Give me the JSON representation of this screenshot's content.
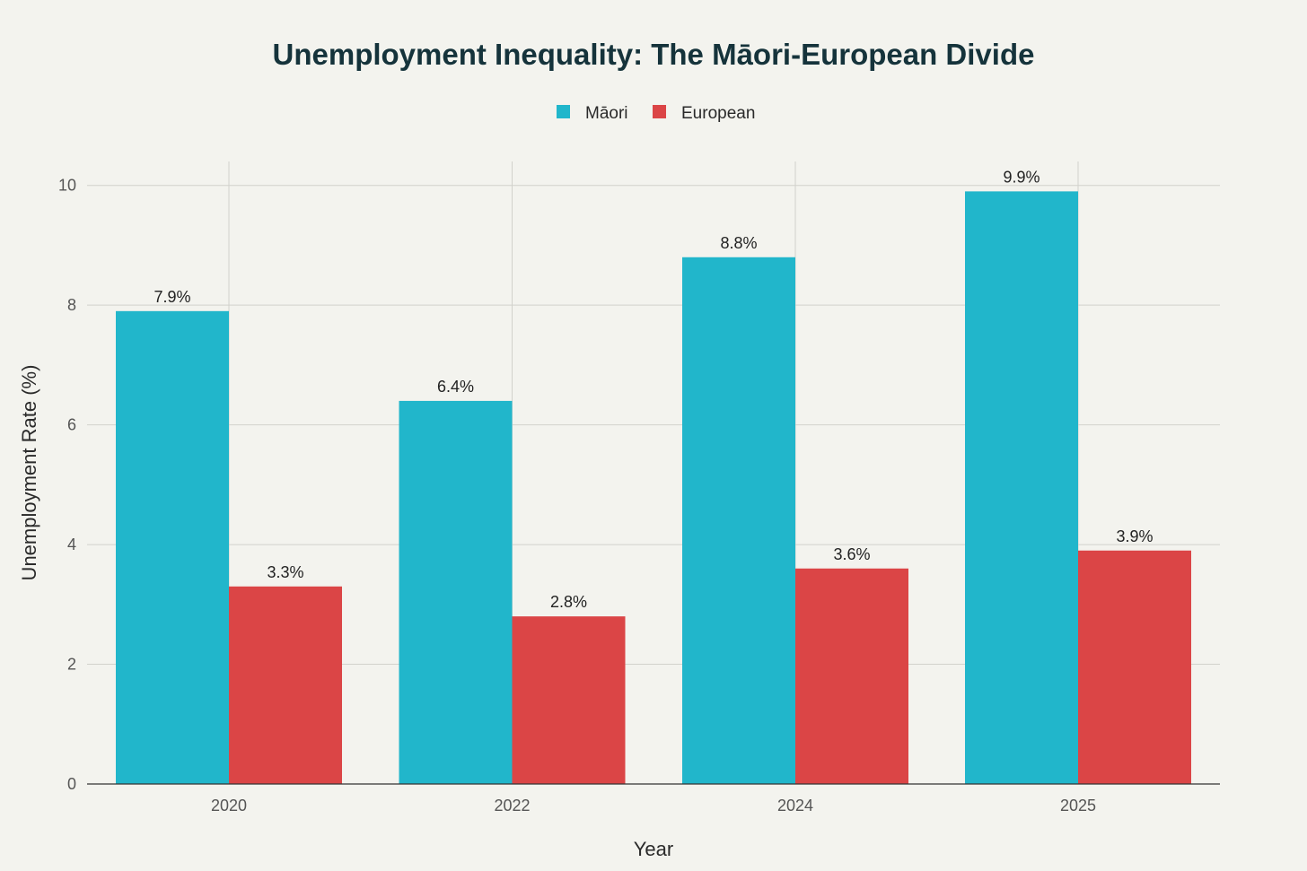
{
  "chart_data": {
    "type": "bar",
    "title": "Unemployment Inequality: The Māori-European Divide",
    "xlabel": "Year",
    "ylabel": "Unemployment Rate (%)",
    "categories": [
      "2020",
      "2022",
      "2024",
      "2025"
    ],
    "series": [
      {
        "name": "Māori",
        "color": "#21b6cb",
        "values": [
          7.9,
          6.4,
          8.8,
          9.9
        ],
        "labels": [
          "7.9%",
          "6.4%",
          "8.8%",
          "9.9%"
        ]
      },
      {
        "name": "European",
        "color": "#db4546",
        "values": [
          3.3,
          2.8,
          3.6,
          3.9
        ],
        "labels": [
          "3.3%",
          "2.8%",
          "3.6%",
          "3.9%"
        ]
      }
    ],
    "ylim": [
      0,
      10.4
    ],
    "yticks": [
      "0",
      "2",
      "4",
      "6",
      "8",
      "10"
    ],
    "grid": true,
    "legend": "top-center"
  }
}
